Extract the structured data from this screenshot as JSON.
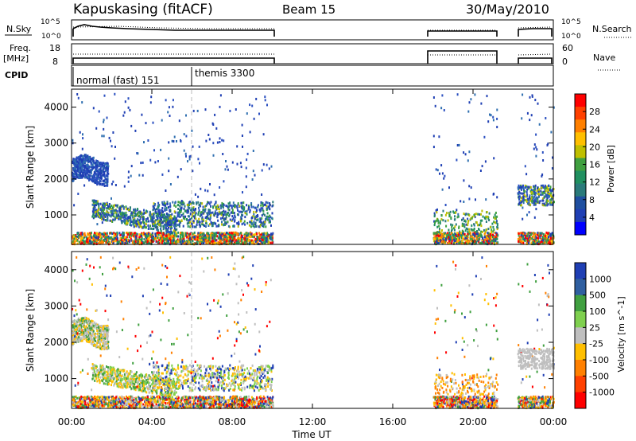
{
  "header": {
    "station": "Kapuskasing (fitACF)",
    "beam": "Beam 15",
    "date": "30/May/2010"
  },
  "side_labels": {
    "nsky": "N.Sky",
    "freq_line1": "Freq.",
    "freq_line2": "[MHz]",
    "cpid": "CPID",
    "nsearch": "N.Search",
    "nave": "Nave"
  },
  "small_ticks": {
    "nsky_left": [
      "10^5",
      "10^0"
    ],
    "nsky_right": [
      "10^5",
      "10^0"
    ],
    "freq_left": [
      "18",
      "8"
    ],
    "nave_right": [
      "60",
      "0"
    ]
  },
  "cpid_modes": [
    {
      "label": "normal (fast) 151",
      "start": "00:00",
      "end": "06:00"
    },
    {
      "label": "themis 3300",
      "start": "06:00",
      "end": "24:00"
    }
  ],
  "colors": {
    "scatter_blue": "#1f3fb4",
    "ground_grey": "#bfbfbf"
  },
  "chart_data": [
    {
      "type": "heatmap",
      "title": "",
      "ylabel": "Slant Range [km]",
      "xlabel": "",
      "x_ticks": [
        "00:00",
        "04:00",
        "08:00",
        "12:00",
        "16:00",
        "20:00",
        "00:00"
      ],
      "y_ticks": [
        "1000",
        "2000",
        "3000",
        "4000"
      ],
      "xlim_hours": [
        0,
        24
      ],
      "ylim_km": [
        180,
        4500
      ],
      "colorbar": {
        "label": "Power [dB]",
        "ticks": [
          "28",
          "24",
          "20",
          "16",
          "12",
          "8",
          "4"
        ],
        "colors": [
          "#ff0000",
          "#ff4000",
          "#ff8000",
          "#ffbf00",
          "#bfbf00",
          "#40a040",
          "#209060",
          "#2a7a7a",
          "#1f4fa0",
          "#1f3fb4",
          "#0000ff"
        ]
      },
      "data_periods_hours": [
        [
          0,
          10
        ],
        [
          18,
          21.2
        ],
        [
          22.2,
          24
        ]
      ],
      "description_regions": [
        {
          "x_hours": [
            0,
            1.8
          ],
          "range_km": [
            1900,
            2600
          ],
          "level_db": 8
        },
        {
          "x_hours": [
            1.8,
            5
          ],
          "range_km": [
            600,
            1100
          ],
          "level_db": 6
        },
        {
          "x_hours": [
            22.2,
            24
          ],
          "range_km": [
            1300,
            1900
          ],
          "level_db": 8
        }
      ]
    },
    {
      "type": "heatmap",
      "title": "",
      "ylabel": "Slant Range [km]",
      "xlabel": "Time UT",
      "x_ticks": [
        "00:00",
        "04:00",
        "08:00",
        "12:00",
        "16:00",
        "20:00",
        "00:00"
      ],
      "y_ticks": [
        "1000",
        "2000",
        "3000",
        "4000"
      ],
      "xlim_hours": [
        0,
        24
      ],
      "ylim_km": [
        180,
        4500
      ],
      "colorbar": {
        "label": "Velocity [m s^-1]",
        "ticks": [
          "1000",
          "500",
          "100",
          "25",
          "-25",
          "-100",
          "-500",
          "-1000"
        ],
        "colors": [
          "#1f3fb4",
          "#2f5fa0",
          "#40a040",
          "#7fd04f",
          "#bfbfbf",
          "#ffbf00",
          "#ff8000",
          "#ff4000",
          "#ff0000"
        ]
      },
      "data_periods_hours": [
        [
          0,
          10
        ],
        [
          18,
          21.2
        ],
        [
          22.2,
          24
        ]
      ]
    }
  ]
}
